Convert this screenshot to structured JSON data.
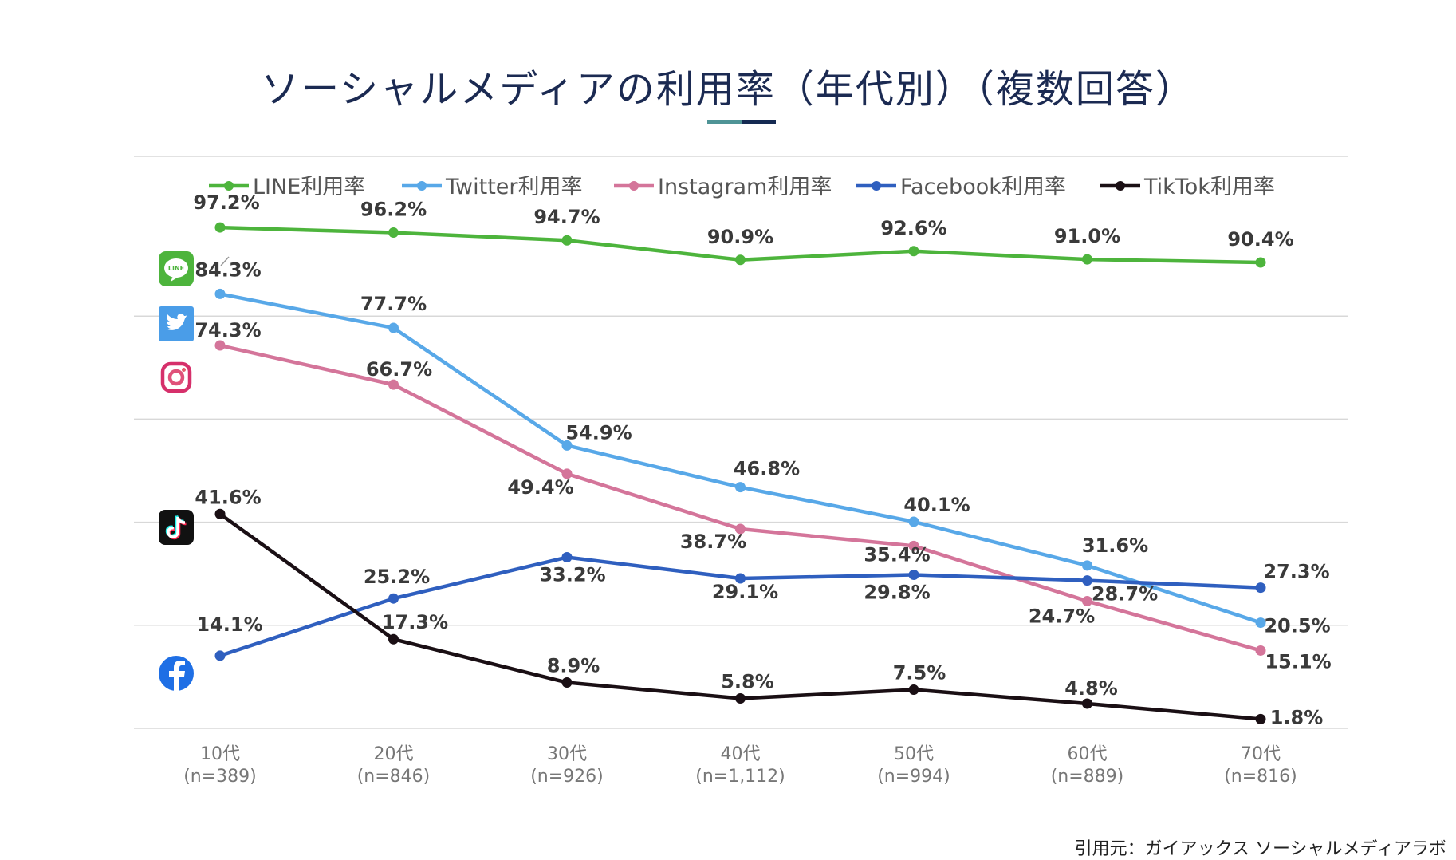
{
  "title": "ソーシャルメディアの利用率（年代別）（複数回答）",
  "source": "引用元：ガイアックス ソーシャルメディアラボ",
  "chart_data": {
    "type": "line",
    "title": "ソーシャルメディアの利用率（年代別）（複数回答）",
    "xlabel": "",
    "ylabel": "",
    "ylim": [
      0,
      100
    ],
    "grid": true,
    "legend_position": "top",
    "categories": [
      {
        "label": "10代",
        "n": "(n=389)"
      },
      {
        "label": "20代",
        "n": "(n=846)"
      },
      {
        "label": "30代",
        "n": "(n=926)"
      },
      {
        "label": "40代",
        "n": "(n=1,112)"
      },
      {
        "label": "50代",
        "n": "(n=994)"
      },
      {
        "label": "60代",
        "n": "(n=889)"
      },
      {
        "label": "70代",
        "n": "(n=816)"
      }
    ],
    "series": [
      {
        "key": "line",
        "name": "LINE利用率",
        "color": "#4db43c",
        "icon": "line-app-icon",
        "values": [
          97.2,
          96.2,
          94.7,
          90.9,
          92.6,
          91.0,
          90.4
        ],
        "labels": [
          "97.2%",
          "96.2%",
          "94.7%",
          "90.9%",
          "92.6%",
          "91.0%",
          "90.4%"
        ]
      },
      {
        "key": "twitter",
        "name": "Twitter利用率",
        "color": "#58a8e8",
        "icon": "twitter-bird-icon",
        "values": [
          84.3,
          77.7,
          54.9,
          46.8,
          40.1,
          31.6,
          20.5
        ],
        "labels": [
          "84.3%",
          "77.7%",
          "54.9%",
          "46.8%",
          "40.1%",
          "31.6%",
          "20.5%"
        ]
      },
      {
        "key": "instagram",
        "name": "Instagram利用率",
        "color": "#d4759a",
        "icon": "instagram-camera-icon",
        "values": [
          74.3,
          66.7,
          49.4,
          38.7,
          35.4,
          24.7,
          15.1
        ],
        "labels": [
          "74.3%",
          "66.7%",
          "49.4%",
          "38.7%",
          "35.4%",
          "24.7%",
          "15.1%"
        ]
      },
      {
        "key": "facebook",
        "name": "Facebook利用率",
        "color": "#2f5fbf",
        "icon": "facebook-f-icon",
        "values": [
          14.1,
          25.2,
          33.2,
          29.1,
          29.8,
          28.7,
          27.3
        ],
        "labels": [
          "14.1%",
          "25.2%",
          "33.2%",
          "29.1%",
          "29.8%",
          "28.7%",
          "27.3%"
        ]
      },
      {
        "key": "tiktok",
        "name": "TikTok利用率",
        "color": "#1a0f14",
        "icon": "tiktok-note-icon",
        "values": [
          41.6,
          17.3,
          8.9,
          5.8,
          7.5,
          4.8,
          1.8
        ],
        "labels": [
          "41.6%",
          "17.3%",
          "8.9%",
          "5.8%",
          "7.5%",
          "4.8%",
          "1.8%"
        ]
      }
    ]
  }
}
